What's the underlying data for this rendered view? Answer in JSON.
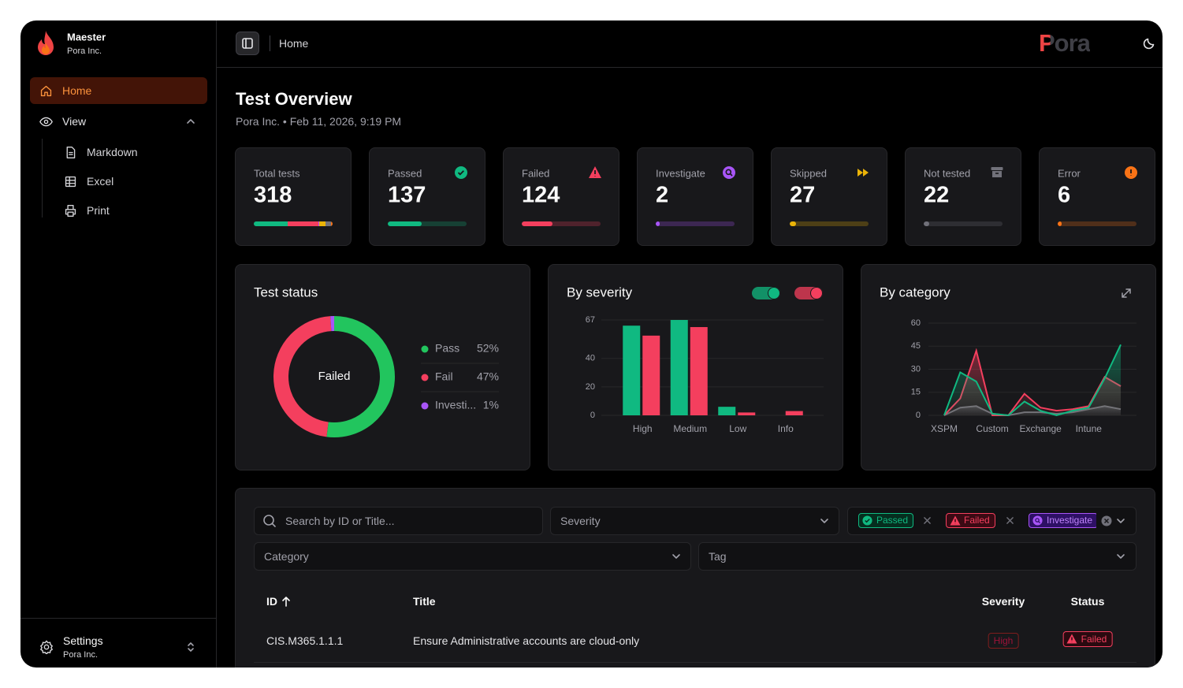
{
  "sidebar": {
    "org": {
      "name": "Maester",
      "subtitle": "Pora Inc."
    },
    "nav": [
      {
        "label": "Home"
      },
      {
        "label": "View"
      },
      {
        "label": "Markdown"
      },
      {
        "label": "Excel"
      },
      {
        "label": "Print"
      }
    ],
    "footer": {
      "label": "Settings",
      "subtitle": "Pora Inc."
    }
  },
  "topbar": {
    "breadcrumb": "Home",
    "logo": "Pora"
  },
  "header": {
    "title": "Test Overview",
    "subtitle": "Pora Inc. • Feb 11, 2026, 9:19 PM"
  },
  "stats": [
    {
      "label": "Total tests",
      "value": 318
    },
    {
      "label": "Passed",
      "value": 137,
      "color": "#10b981"
    },
    {
      "label": "Failed",
      "value": 124,
      "color": "#f43f5e"
    },
    {
      "label": "Investigate",
      "value": 2,
      "color": "#a855f7"
    },
    {
      "label": "Skipped",
      "value": 27,
      "color": "#eab308"
    },
    {
      "label": "Not tested",
      "value": 22,
      "color": "#71717a"
    },
    {
      "label": "Error",
      "value": 6,
      "color": "#f97316"
    }
  ],
  "chart_data": [
    {
      "type": "pie",
      "title": "Test status",
      "center_label": "Failed",
      "categories": [
        "Pass",
        "Fail",
        "Investi..."
      ],
      "values": [
        52,
        47,
        1
      ],
      "value_labels": [
        "52%",
        "47%",
        "1%"
      ],
      "colors": [
        "#22c55e",
        "#f43f5e",
        "#a855f7"
      ]
    },
    {
      "type": "bar",
      "title": "By severity",
      "categories": [
        "High",
        "Medium",
        "Low",
        "Info"
      ],
      "series": [
        {
          "color": "#10b981",
          "values": [
            63,
            67,
            6,
            0
          ]
        },
        {
          "color": "#f43f5e",
          "values": [
            56,
            62,
            2,
            3
          ]
        }
      ],
      "ylim": [
        0,
        67
      ],
      "yticks": [
        0,
        20,
        40,
        67
      ],
      "grid": true
    },
    {
      "type": "line",
      "title": "By category",
      "categories": [
        "XSPM",
        null,
        null,
        "Custom",
        null,
        null,
        "Exchange",
        null,
        null,
        "Intune",
        null,
        null
      ],
      "series": [
        {
          "color": "#10b981",
          "values": [
            0,
            28,
            22,
            1,
            0,
            9,
            3,
            0,
            3,
            5,
            24,
            46
          ]
        },
        {
          "color": "#f43f5e",
          "values": [
            0,
            11,
            42,
            0,
            0,
            14,
            5,
            3,
            4,
            6,
            25,
            19
          ]
        },
        {
          "color": "#71717a",
          "values": [
            0,
            5,
            6,
            1,
            0,
            2,
            2,
            1,
            2,
            4,
            6,
            4
          ]
        }
      ],
      "ylim": [
        0,
        60
      ],
      "yticks": [
        0,
        15,
        30,
        45,
        60
      ],
      "grid": true
    }
  ],
  "filters": {
    "search": "Search by ID or Title...",
    "severity": "Severity",
    "status_chips": [
      "Passed",
      "Failed",
      "Investigate"
    ],
    "category": "Category",
    "tag": "Tag"
  },
  "table": {
    "columns": [
      "ID",
      "Title",
      "Severity",
      "Status"
    ],
    "rows": [
      [
        "CIS.M365.1.1.1",
        "Ensure Administrative accounts are cloud-only",
        "High",
        "Failed"
      ]
    ]
  }
}
